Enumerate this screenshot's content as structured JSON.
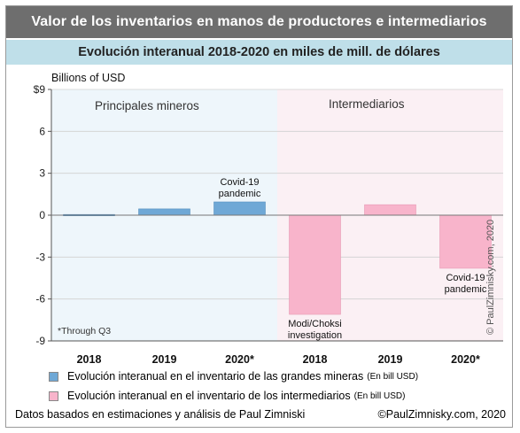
{
  "header": {
    "title": "Valor de los inventarios en manos de productores e intermediarios",
    "subtitle": "Evolución interanual 2018-2020 en miles de mill. de dólares"
  },
  "colors": {
    "title_bg": "#6e6e6e",
    "subtitle_bg": "#bfdfe9",
    "miners_bar": "#6fa8d6",
    "intermediaries_bar": "#f8b4cb",
    "miners_bg": "#eef6fb",
    "intermediaries_bg": "#fbf0f4"
  },
  "chart_data": {
    "type": "bar",
    "ylabel": "Billions of USD",
    "ylim": [
      -9,
      9
    ],
    "yticks": [
      "$9",
      "6",
      "3",
      "0",
      "-3",
      "-6",
      "-9"
    ],
    "ytick_values": [
      9,
      6,
      3,
      0,
      -3,
      -6,
      -9
    ],
    "grid": true,
    "categories": [
      "2018",
      "2019",
      "2020*",
      "2018",
      "2019",
      "2020*"
    ],
    "panels": [
      "Principales mineros",
      "Intermediarios"
    ],
    "series": [
      {
        "name": "Evolución interanual en el inventario de las grandes mineras",
        "values": [
          0.05,
          0.45,
          0.95,
          null,
          null,
          null
        ]
      },
      {
        "name": "Evolución interanual en el inventario de los intermediarios",
        "values": [
          null,
          null,
          null,
          -7.1,
          0.75,
          -3.8
        ]
      }
    ],
    "annotations": [
      {
        "text": [
          "Covid-19",
          "pandemic"
        ],
        "category_index": 2
      },
      {
        "text": [
          "Modi/Choksi",
          "investigation"
        ],
        "category_index": 3
      },
      {
        "text": [
          "Covid-19",
          "pandemic"
        ],
        "category_index": 5
      }
    ],
    "note": "*Through Q3",
    "watermark": "© PaulZimnisky.com, 2020"
  },
  "legend": [
    {
      "label": "Evolución interanual en el inventario de las grandes mineras",
      "unit": "(En bill USD)"
    },
    {
      "label": "Evolución interanual en el inventario de los intermediarios",
      "unit": "(En bill USD)"
    }
  ],
  "footer": {
    "source": "Datos basados en estimaciones y análisis de Paul Zimniski",
    "copyright": "©PaulZimnisky.com, 2020"
  }
}
